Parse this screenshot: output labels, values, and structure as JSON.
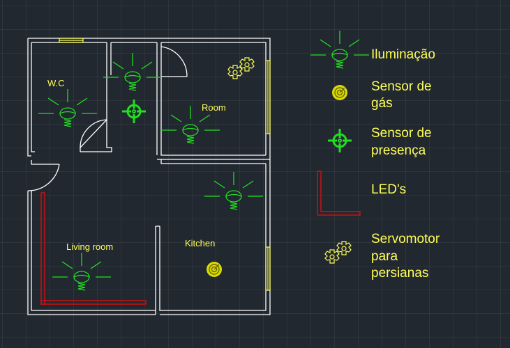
{
  "colors": {
    "background": "#212830",
    "wall": "#ffffff",
    "lamp": "#22dd22",
    "sensor_gas": "#d9d900",
    "sensor_presence": "#22dd22",
    "led": "#cc1111",
    "servo": "#ffff55",
    "window": "#ffff55",
    "label": "#ffff55"
  },
  "rooms": {
    "wc": "W.C",
    "room": "Room",
    "living_room": "Living room",
    "kitchen": "Kitchen"
  },
  "legend": {
    "lighting": "Iluminação",
    "gas_sensor_line1": "Sensor de",
    "gas_sensor_line2": "gás",
    "presence_sensor_line1": "Sensor de",
    "presence_sensor_line2": "presença",
    "leds": "LED's",
    "servo_line1": "Servomotor",
    "servo_line2": "para",
    "servo_line3": "persianas"
  },
  "icons": {
    "lamp": "ceiling-lamp-icon",
    "gas_sensor": "gas-sensor-icon",
    "presence_sensor": "presence-sensor-icon",
    "led_strip": "led-strip-icon",
    "servo": "gear-servo-icon"
  }
}
